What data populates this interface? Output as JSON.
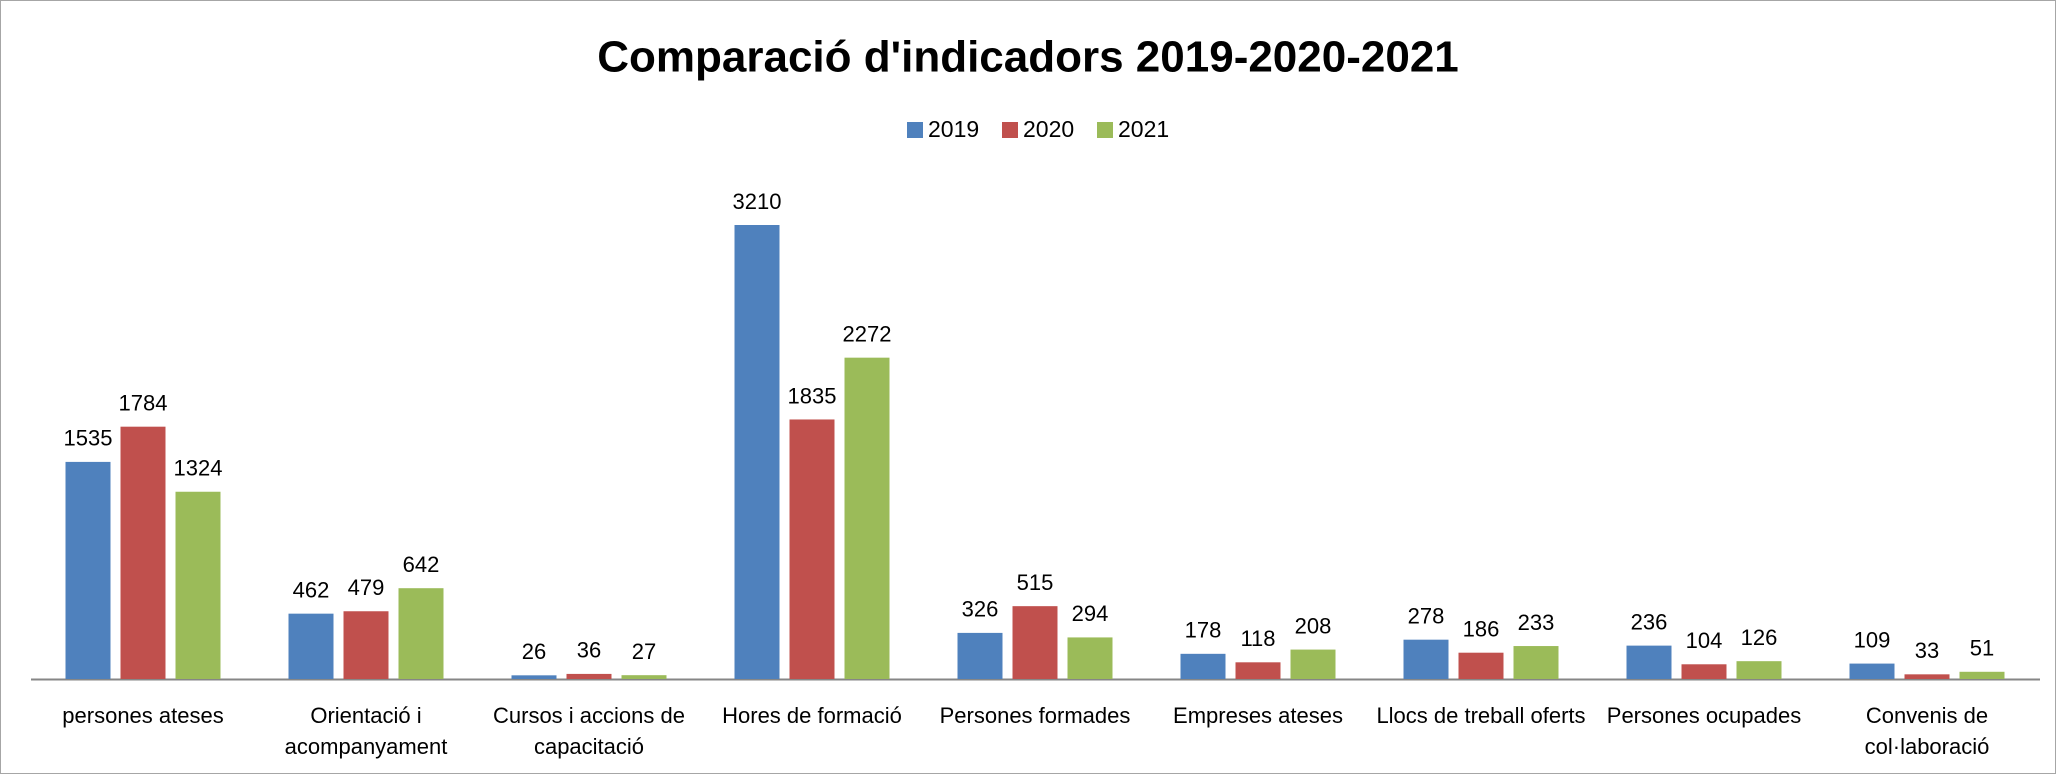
{
  "chart_data": {
    "type": "bar",
    "title": "Comparació d'indicadors 2019-2020-2021",
    "categories": [
      "persones ateses",
      "Orientació i acompanyament",
      "Cursos i accions de capacitació",
      "Hores de formació",
      "Persones formades",
      "Empreses ateses",
      "Llocs de treball oferts",
      "Persones ocupades",
      "Convenis de col·laboració"
    ],
    "series": [
      {
        "name": "2019",
        "color": "#4f81bd",
        "values": [
          1535,
          462,
          26,
          3210,
          326,
          178,
          278,
          236,
          109
        ]
      },
      {
        "name": "2020",
        "color": "#c0504d",
        "values": [
          1784,
          479,
          36,
          1835,
          515,
          118,
          186,
          104,
          33
        ]
      },
      {
        "name": "2021",
        "color": "#9bbb59",
        "values": [
          1324,
          642,
          27,
          2272,
          294,
          208,
          233,
          126,
          51
        ]
      }
    ],
    "legend": "top"
  }
}
